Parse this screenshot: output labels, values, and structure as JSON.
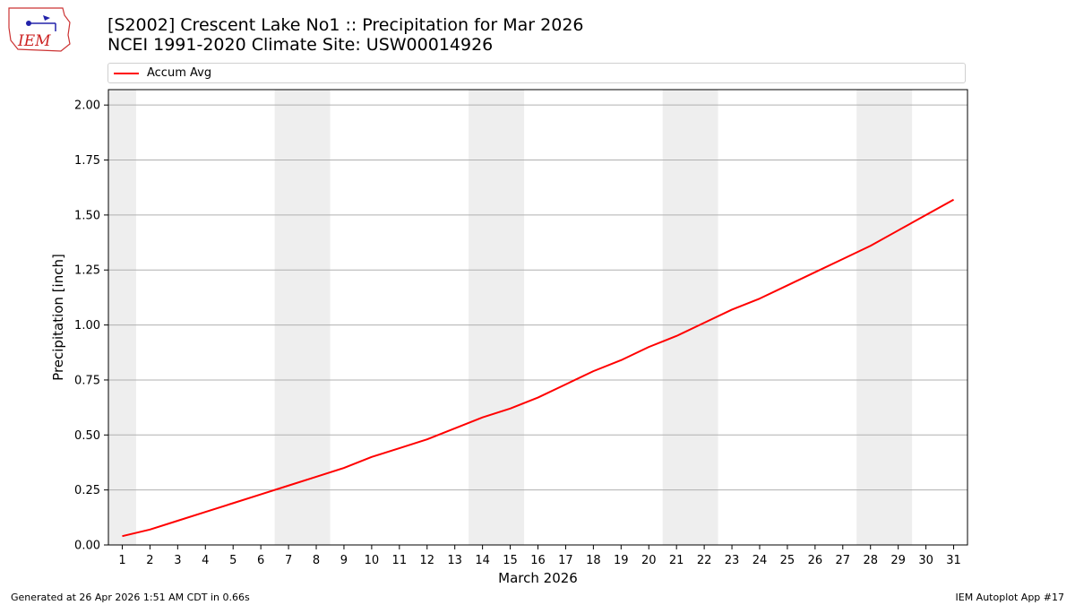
{
  "title": {
    "line1": "[S2002] Crescent Lake No1 :: Precipitation for Mar 2026",
    "line2": "NCEI 1991-2020 Climate Site: USW00014926"
  },
  "logo": {
    "text": "IEM"
  },
  "footer": {
    "left": "Generated at 26 Apr 2026 1:51 AM CDT in 0.66s",
    "right": "IEM Autoplot App #17"
  },
  "colors": {
    "series": "#ff0000",
    "weekend_band": "#eeeeee",
    "grid": "#b0b0b0"
  },
  "chart_data": {
    "type": "line",
    "xlabel": "March 2026",
    "ylabel": "Precipitation [inch]",
    "xlim": [
      0.5,
      31.5
    ],
    "ylim": [
      0,
      2.07
    ],
    "yticks": [
      0,
      0.25,
      0.5,
      0.75,
      1.0,
      1.25,
      1.5,
      1.75,
      2.0
    ],
    "ytick_labels": [
      "0.00",
      "0.25",
      "0.50",
      "0.75",
      "1.00",
      "1.25",
      "1.50",
      "1.75",
      "2.00"
    ],
    "grid": "y",
    "legend": "top",
    "weekend_bands": [
      [
        0.5,
        1.5
      ],
      [
        6.5,
        8.5
      ],
      [
        13.5,
        15.5
      ],
      [
        20.5,
        22.5
      ],
      [
        27.5,
        29.5
      ]
    ],
    "x": [
      1,
      2,
      3,
      4,
      5,
      6,
      7,
      8,
      9,
      10,
      11,
      12,
      13,
      14,
      15,
      16,
      17,
      18,
      19,
      20,
      21,
      22,
      23,
      24,
      25,
      26,
      27,
      28,
      29,
      30,
      31
    ],
    "series": [
      {
        "name": "Accum Avg",
        "values": [
          0.04,
          0.07,
          0.11,
          0.15,
          0.19,
          0.23,
          0.27,
          0.31,
          0.35,
          0.4,
          0.44,
          0.48,
          0.53,
          0.58,
          0.62,
          0.67,
          0.73,
          0.79,
          0.84,
          0.9,
          0.95,
          1.01,
          1.07,
          1.12,
          1.18,
          1.24,
          1.3,
          1.36,
          1.43,
          1.5,
          1.57
        ]
      }
    ]
  }
}
